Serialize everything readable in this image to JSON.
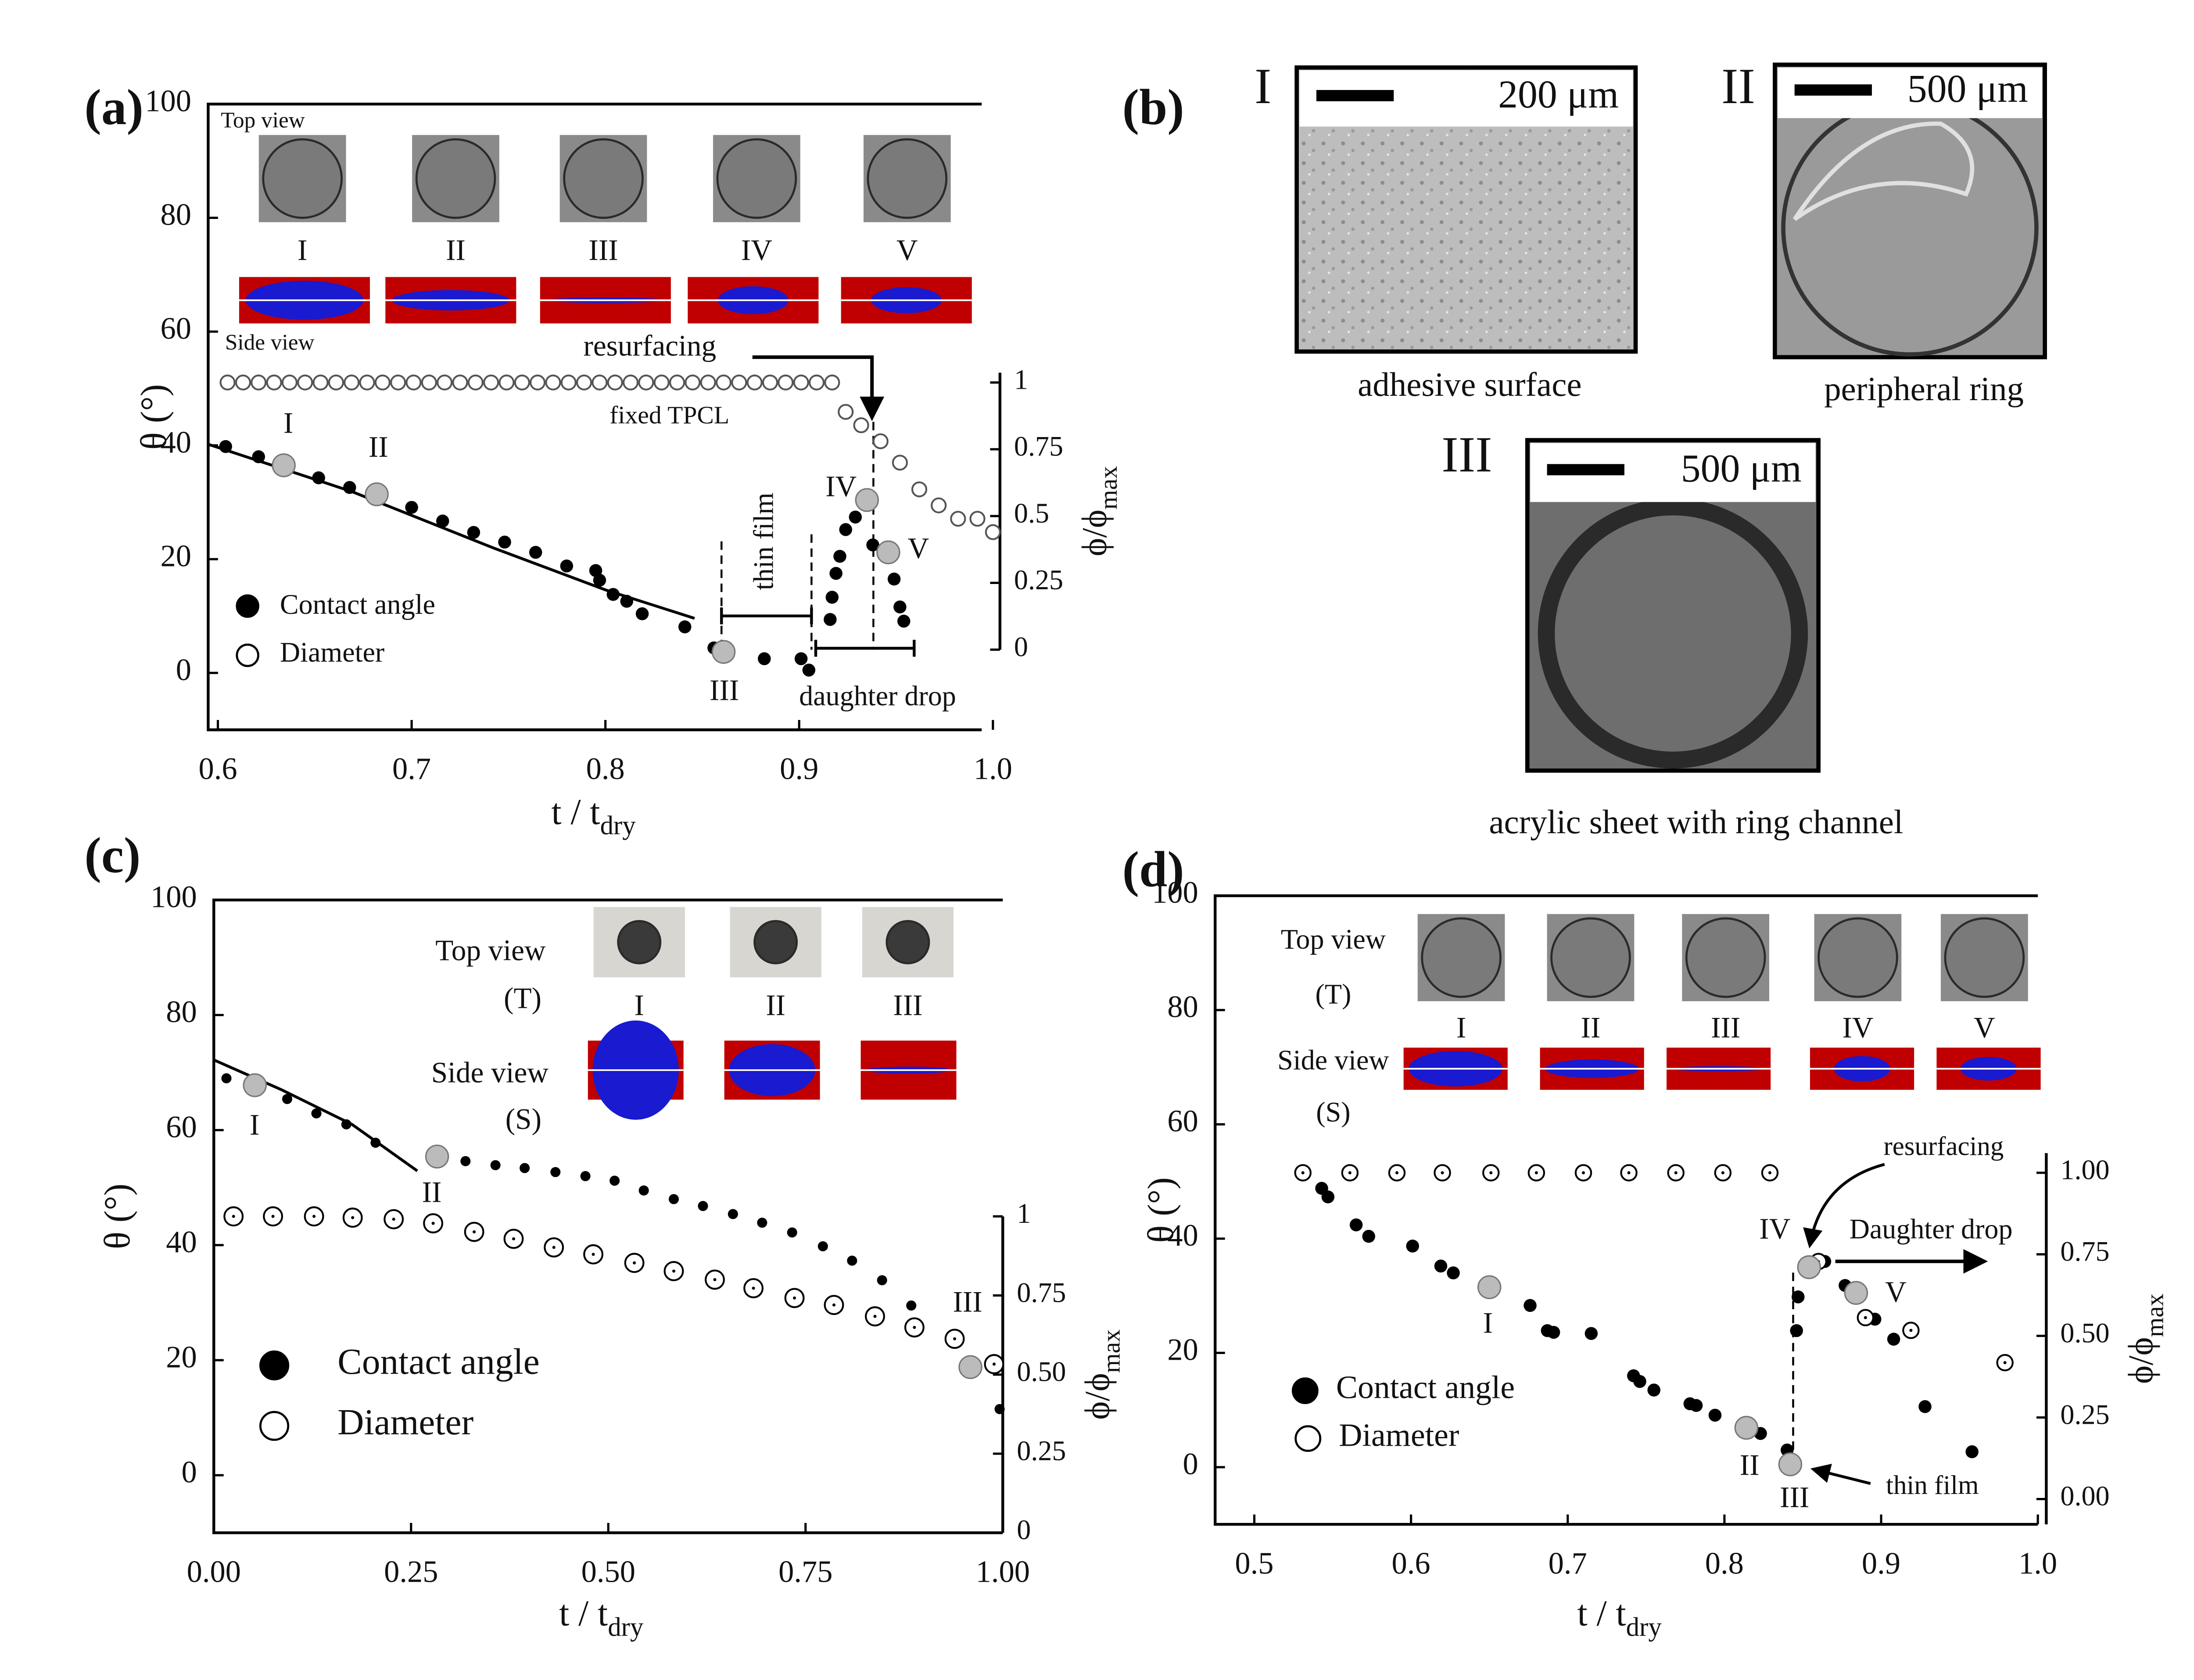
{
  "chart_data": [
    {
      "type": "scatter",
      "label": "(a)",
      "xlabel": {
        "text": "t / t",
        "sub": "dry"
      },
      "ylabel": "θ (°)",
      "y2label": {
        "text": "ϕ/ϕ",
        "sub": "max"
      },
      "xlim": [
        0.595,
        1.0
      ],
      "ylim": [
        -10,
        100
      ],
      "y2lim": [
        0,
        1
      ],
      "xticks": [
        0.6,
        0.7,
        0.8,
        0.9,
        {
          "value": 1,
          "label": "1.0"
        }
      ],
      "yticks": [
        0,
        20,
        40,
        60,
        80,
        100
      ],
      "y2ticks": [
        0,
        0.25,
        0.5,
        0.75,
        1
      ],
      "series": [
        {
          "name": "Contact angle",
          "color": "#000000",
          "marker": "filled",
          "x": [
            0.604,
            0.621,
            0.652,
            0.668,
            0.7,
            0.716,
            0.732,
            0.748,
            0.764,
            0.78,
            0.795,
            0.797,
            0.804,
            0.811,
            0.819,
            0.841,
            0.856,
            0.882,
            0.901,
            0.905,
            0.916,
            0.917,
            0.919,
            0.921,
            0.924,
            0.929,
            0.938,
            0.949,
            0.952,
            0.954
          ],
          "values": [
            39.8,
            38,
            34.3,
            32.6,
            29.1,
            26.7,
            24.7,
            23,
            21.2,
            18.8,
            18,
            16.3,
            13.8,
            12.6,
            10.4,
            8.1,
            4.4,
            2.5,
            2.5,
            0.5,
            9.4,
            13.3,
            17.5,
            20.5,
            25.2,
            27.4,
            22.5,
            16.5,
            11.6,
            9.1
          ]
        },
        {
          "name": "Diameter",
          "color": "#555555",
          "marker": "open",
          "axis": "y2",
          "x": [
            0.605,
            0.613,
            0.621,
            0.629,
            0.637,
            0.645,
            0.653,
            0.661,
            0.669,
            0.677,
            0.685,
            0.693,
            0.701,
            0.709,
            0.717,
            0.725,
            0.733,
            0.741,
            0.749,
            0.757,
            0.765,
            0.773,
            0.781,
            0.789,
            0.797,
            0.805,
            0.813,
            0.821,
            0.829,
            0.837,
            0.845,
            0.853,
            0.861,
            0.869,
            0.877,
            0.885,
            0.893,
            0.901,
            0.909,
            0.917,
            0.924,
            0.932,
            0.942,
            0.952,
            0.962,
            0.972,
            0.982,
            0.992,
            1.0
          ],
          "values": [
            1,
            1,
            1,
            1,
            1,
            1,
            1,
            1,
            1,
            1,
            1,
            1,
            1,
            1,
            1,
            1,
            1,
            1,
            1,
            1,
            1,
            1,
            1,
            1,
            1,
            1,
            1,
            1,
            1,
            1,
            1,
            1,
            1,
            1,
            1,
            1,
            1,
            1,
            1,
            1,
            0.89,
            0.84,
            0.78,
            0.7,
            0.6,
            0.54,
            0.49,
            0.49,
            0.44
          ]
        }
      ],
      "highlights": {
        "color": "#bbbbbb",
        "x": [
          0.634,
          0.682,
          0.861,
          0.935,
          0.946
        ],
        "values": [
          36.5,
          31.4,
          3.7,
          30.4,
          21.2
        ],
        "labels": [
          "I",
          "II",
          "III",
          "IV",
          "V"
        ]
      },
      "fit": {
        "x": [
          0.595,
          0.669,
          0.742,
          0.8,
          0.846
        ],
        "values": [
          40.2,
          31.9,
          22,
          14.6,
          9.6
        ]
      },
      "insets": {
        "top_label": "Top view",
        "side_label": "Side view",
        "labels": [
          "I",
          "II",
          "III",
          "IV",
          "V"
        ]
      },
      "annotations": [
        "resurfacing",
        "fixed TPCL",
        "thin film",
        "daughter drop"
      ]
    },
    {
      "type": "scatter",
      "label": "(c)",
      "xlabel": {
        "text": "t / t",
        "sub": "dry"
      },
      "ylabel": "θ (°)",
      "y2label": {
        "text": "ϕ/ϕ",
        "sub": "max"
      },
      "xlim": [
        0,
        1
      ],
      "ylim": [
        -10,
        100
      ],
      "y2lim": [
        0,
        1
      ],
      "xticks": [
        {
          "value": 0,
          "label": "0.00"
        },
        0.25,
        {
          "value": 0.5,
          "label": "0.50"
        },
        0.75,
        {
          "value": 1,
          "label": "1.00"
        }
      ],
      "yticks": [
        0,
        20,
        40,
        60,
        80,
        100
      ],
      "y2ticks": [
        0,
        0.25,
        {
          "value": 0.5,
          "label": "0.50"
        },
        0.75,
        1
      ],
      "series": [
        {
          "name": "Contact angle",
          "color": "#000000",
          "marker": "filled",
          "x": [
            0.016,
            0.093,
            0.13,
            0.168,
            0.205,
            0.319,
            0.357,
            0.394,
            0.433,
            0.471,
            0.508,
            0.545,
            0.583,
            0.62,
            0.658,
            0.695,
            0.733,
            0.772,
            0.809,
            0.847,
            0.884,
            0.996
          ],
          "values": [
            69,
            65.4,
            62.9,
            61,
            57.8,
            54.6,
            53.9,
            53.4,
            52.7,
            52,
            51.2,
            49.5,
            48,
            46.8,
            45.4,
            43.9,
            42.2,
            39.8,
            37.3,
            33.9,
            29.5,
            11.5
          ]
        },
        {
          "name": "Diameter",
          "color": "#000000",
          "marker": "open",
          "axis": "y2",
          "x": [
            0.025,
            0.075,
            0.127,
            0.176,
            0.228,
            0.278,
            0.33,
            0.38,
            0.431,
            0.481,
            0.533,
            0.583,
            0.635,
            0.684,
            0.736,
            0.786,
            0.838,
            0.888,
            0.939,
            0.989
          ],
          "values": [
            1,
            1,
            1,
            0.996,
            0.991,
            0.978,
            0.951,
            0.929,
            0.902,
            0.88,
            0.853,
            0.827,
            0.8,
            0.773,
            0.742,
            0.72,
            0.684,
            0.649,
            0.613,
            0.533
          ]
        }
      ],
      "highlights": {
        "color": "#bbbbbb",
        "x": [
          0.052,
          0.283,
          0.959
        ],
        "values": [
          67.8,
          55.4,
          18.8
        ],
        "labels": [
          "I",
          "II",
          "III"
        ]
      },
      "fit": {
        "x": [
          0,
          0.086,
          0.175,
          0.258
        ],
        "values": [
          72.2,
          67,
          61,
          52.9
        ]
      },
      "insets": {
        "top_label": "Top view",
        "top_sub": "(T)",
        "side_label": "Side view",
        "side_sub": "(S)",
        "labels": [
          "I",
          "II",
          "III"
        ]
      },
      "annotations": []
    },
    {
      "type": "scatter",
      "label": "(d)",
      "xlabel": {
        "text": "t / t",
        "sub": "dry"
      },
      "ylabel": "θ (°)",
      "y2label": {
        "text": "ϕ/ϕ",
        "sub": "max"
      },
      "xlim": [
        0.475,
        1.0
      ],
      "ylim": [
        -10,
        100
      ],
      "y2lim": [
        0,
        1
      ],
      "xticks": [
        0.5,
        0.6,
        0.7,
        0.8,
        0.9,
        {
          "value": 1,
          "label": "1.0"
        }
      ],
      "yticks": [
        0,
        20,
        40,
        60,
        80,
        100
      ],
      "y2ticks": [
        {
          "value": 0,
          "label": "0.00"
        },
        0.25,
        {
          "value": 0.5,
          "label": "0.50"
        },
        0.75,
        {
          "value": 1,
          "label": "1.00"
        }
      ],
      "series": [
        {
          "name": "Contact angle",
          "color": "#000000",
          "marker": "filled",
          "x": [
            0.543,
            0.547,
            0.565,
            0.573,
            0.601,
            0.619,
            0.627,
            0.676,
            0.687,
            0.691,
            0.715,
            0.742,
            0.746,
            0.755,
            0.778,
            0.782,
            0.794,
            0.823,
            0.84,
            0.846,
            0.847,
            0.864,
            0.877,
            0.896,
            0.908,
            0.928,
            0.958
          ],
          "values": [
            48.8,
            47.3,
            42.4,
            40.4,
            38.7,
            35.2,
            34,
            28.3,
            23.9,
            23.6,
            23.4,
            16,
            15,
            13.5,
            11.1,
            10.8,
            9.1,
            5.9,
            3,
            23.9,
            29.8,
            36,
            31.8,
            25.9,
            22.4,
            10.6,
            2.7
          ]
        },
        {
          "name": "Diameter",
          "color": "#000000",
          "marker": "open",
          "axis": "y2",
          "x": [
            0.531,
            0.561,
            0.591,
            0.62,
            0.651,
            0.68,
            0.71,
            0.739,
            0.769,
            0.799,
            0.829,
            0.86,
            0.89,
            0.919,
            0.979
          ],
          "values": [
            1,
            1,
            1,
            1,
            1,
            1,
            1,
            1,
            1,
            1,
            1,
            0.728,
            0.556,
            0.517,
            0.418
          ]
        }
      ],
      "highlights": {
        "color": "#bbbbbb",
        "x": [
          0.65,
          0.814,
          0.842,
          0.854,
          0.884
        ],
        "values": [
          31.5,
          6.9,
          0.5,
          35,
          30.5
        ],
        "labels": [
          "I",
          "II",
          "III",
          "IV",
          "V"
        ]
      },
      "insets": {
        "top_label": "Top view",
        "top_sub": "(T)",
        "side_label": "Side view",
        "side_sub": "(S)",
        "labels": [
          "I",
          "II",
          "III",
          "IV",
          "V"
        ]
      },
      "annotations": [
        "resurfacing",
        "Daughter drop",
        "thin film"
      ]
    }
  ],
  "panel_b": {
    "label": "(b)",
    "images": [
      {
        "numeral": "I",
        "scale": "200 μm",
        "caption": "adhesive surface"
      },
      {
        "numeral": "II",
        "scale": "500 μm",
        "caption": "peripheral ring"
      },
      {
        "numeral": "III",
        "scale": "500 μm",
        "caption": "acrylic sheet with ring channel"
      }
    ]
  }
}
